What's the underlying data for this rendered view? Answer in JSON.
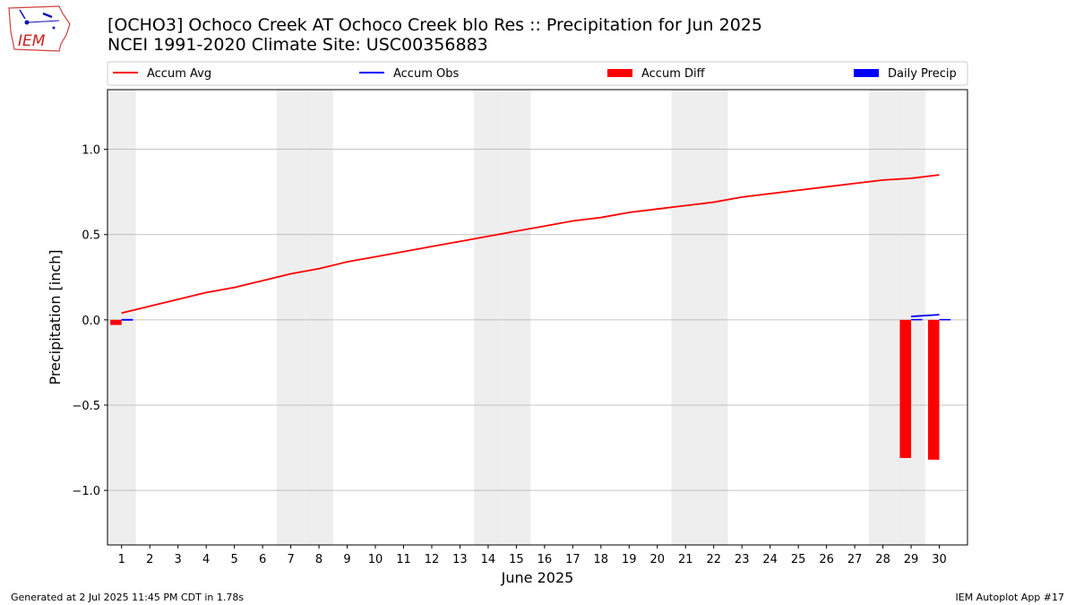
{
  "header": {
    "title_line1": "[OCHO3] Ochoco Creek  AT Ochoco Creek blo Res :: Precipitation for Jun 2025",
    "title_line2": "NCEI 1991-2020 Climate Site: USC00356883",
    "logo_text": "IEM"
  },
  "footer": {
    "left": "Generated at 2 Jul 2025 11:45 PM CDT in 1.78s",
    "right": "IEM Autoplot App #17"
  },
  "colors": {
    "accum_avg": "#ff0000",
    "accum_obs": "#0000ff",
    "accum_diff": "#ff0000",
    "daily_precip": "#0000ff",
    "weekend_shade": "#eeeeee",
    "grid": "#b0b0b0"
  },
  "chart_data": {
    "type": "line",
    "title": "[OCHO3] Ochoco Creek  AT Ochoco Creek blo Res :: Precipitation for Jun 2025",
    "subtitle": "NCEI 1991-2020 Climate Site: USC00356883",
    "xlabel": "June 2025",
    "ylabel": "Precipitation [inch]",
    "xlim": [
      0.5,
      31
    ],
    "ylim": [
      -1.32,
      1.35
    ],
    "yticks": [
      -1.0,
      -0.5,
      0.0,
      0.5,
      1.0
    ],
    "ytick_labels": [
      "−1.0",
      "−0.5",
      "0.0",
      "0.5",
      "1.0"
    ],
    "x": [
      1,
      2,
      3,
      4,
      5,
      6,
      7,
      8,
      9,
      10,
      11,
      12,
      13,
      14,
      15,
      16,
      17,
      18,
      19,
      20,
      21,
      22,
      23,
      24,
      25,
      26,
      27,
      28,
      29,
      30
    ],
    "grid": "horizontal",
    "legend_position": "top",
    "weekend_days": [
      1,
      7,
      8,
      14,
      15,
      21,
      22,
      28,
      29
    ],
    "series": [
      {
        "name": "Accum Avg",
        "kind": "line",
        "x": [
          1,
          2,
          3,
          4,
          5,
          6,
          7,
          8,
          9,
          10,
          11,
          12,
          13,
          14,
          15,
          16,
          17,
          18,
          19,
          20,
          21,
          22,
          23,
          24,
          25,
          26,
          27,
          28,
          29,
          30
        ],
        "values": [
          0.04,
          0.08,
          0.12,
          0.16,
          0.19,
          0.23,
          0.27,
          0.3,
          0.34,
          0.37,
          0.4,
          0.43,
          0.46,
          0.49,
          0.52,
          0.55,
          0.58,
          0.6,
          0.63,
          0.65,
          0.67,
          0.69,
          0.72,
          0.74,
          0.76,
          0.78,
          0.8,
          0.82,
          0.83,
          0.85
        ]
      },
      {
        "name": "Accum Obs",
        "kind": "line",
        "x": [
          1,
          1.4,
          29,
          30
        ],
        "values": [
          0.0,
          0.0,
          0.02,
          0.03
        ]
      },
      {
        "name": "Accum Diff",
        "kind": "bar",
        "x": [
          1,
          29,
          30
        ],
        "values": [
          -0.03,
          -0.81,
          -0.82
        ]
      },
      {
        "name": "Daily Precip",
        "kind": "bar",
        "x": [
          1,
          29,
          30
        ],
        "values": [
          0.005,
          0.005,
          0.005
        ]
      }
    ]
  }
}
